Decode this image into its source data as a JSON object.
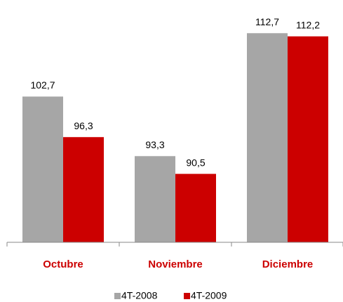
{
  "chart_data": {
    "type": "bar",
    "categories": [
      "Octubre",
      "Noviembre",
      "Diciembre"
    ],
    "series": [
      {
        "name": "4T-2008",
        "color": "#a6a6a6",
        "values": [
          102.7,
          93.3,
          112.7
        ],
        "value_labels": [
          "102,7",
          "93,3",
          "112,7"
        ]
      },
      {
        "name": "4T-2009",
        "color": "#cc0000",
        "values": [
          96.3,
          90.5,
          112.2
        ],
        "value_labels": [
          "96,3",
          "90,5",
          "112,2"
        ]
      }
    ],
    "ylim": [
      79.7,
      115
    ],
    "legend": "bottom"
  }
}
